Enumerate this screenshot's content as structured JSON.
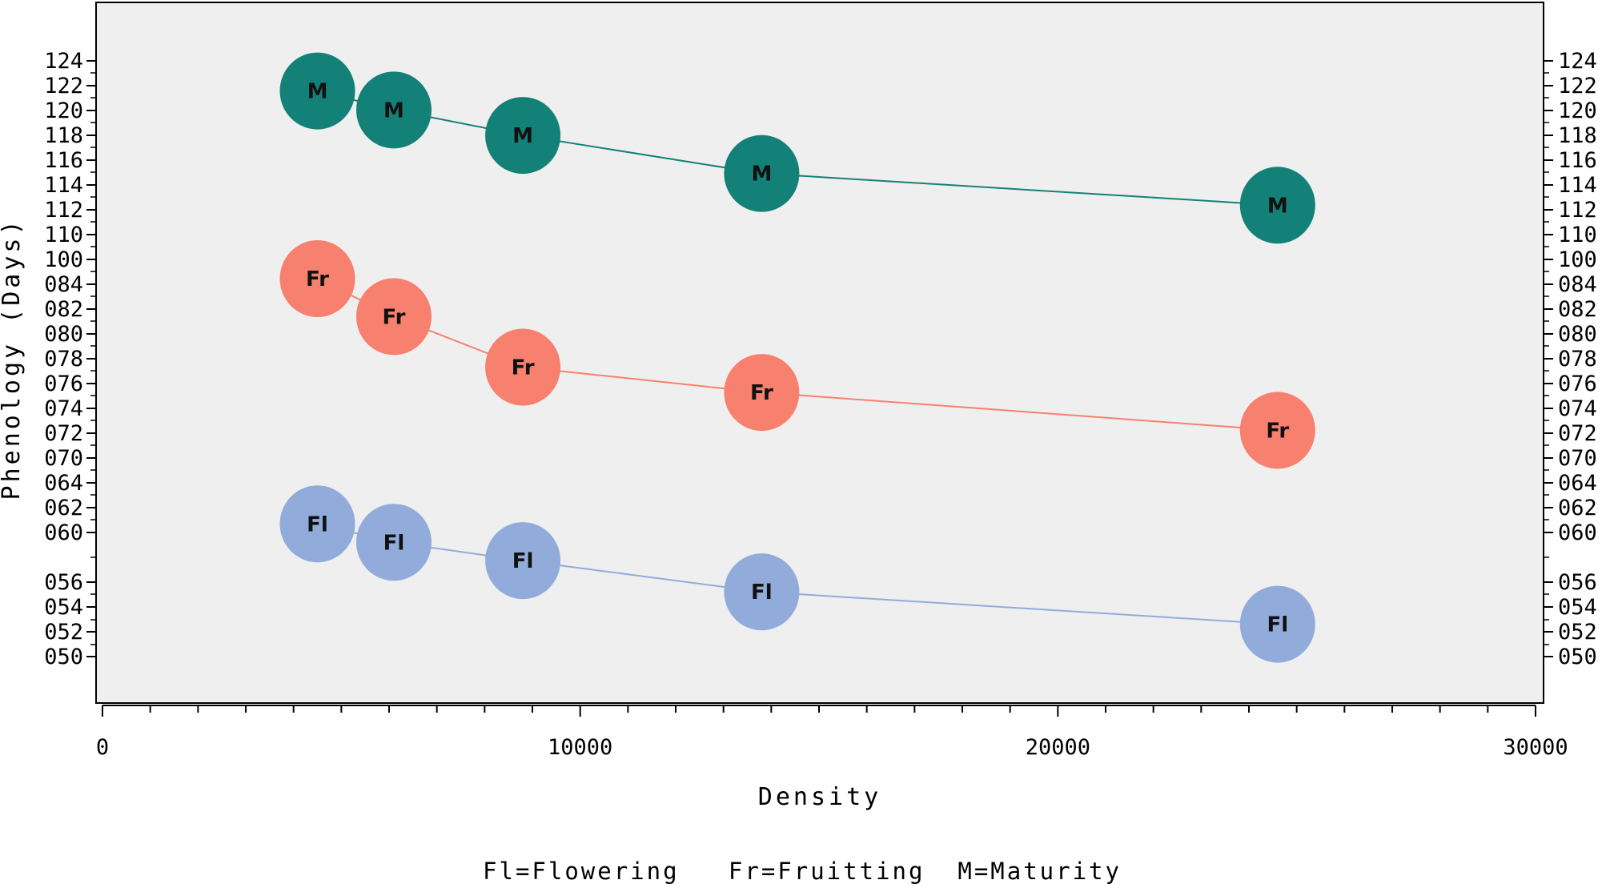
{
  "chart_data": {
    "type": "line",
    "title": "",
    "xlabel": "Density",
    "ylabel": "Phenology (Days)",
    "xlim": [
      0,
      30000
    ],
    "x_ticks": [
      0,
      10000,
      20000,
      30000
    ],
    "x_tick_labels": [
      "0",
      "10000",
      "20000",
      "30000"
    ],
    "y_axis_note": "discontinuous axis: tick labels are categorical stacked labels",
    "y_tick_labels": [
      "050",
      "052",
      "054",
      "056",
      "060",
      "062",
      "064",
      "070",
      "072",
      "074",
      "076",
      "078",
      "080",
      "082",
      "084",
      "100",
      "110",
      "112",
      "114",
      "116",
      "118",
      "120",
      "122",
      "124"
    ],
    "legend_text": "Fl=Flowering   Fr=Fruitting  M=Maturity",
    "series": [
      {
        "name": "Maturity",
        "marker": "M",
        "color": "#138177",
        "x": [
          4500,
          6100,
          8800,
          13800,
          24600
        ],
        "y": [
          121,
          119.5,
          117.5,
          114.5,
          112
        ]
      },
      {
        "name": "Fruitting",
        "marker": "Fr",
        "color": "#F7806F",
        "x": [
          4500,
          6100,
          8800,
          13800,
          24600
        ],
        "y": [
          84,
          81,
          77,
          75,
          72
        ]
      },
      {
        "name": "Flowering",
        "marker": "Fl",
        "color": "#91ACDA",
        "x": [
          4500,
          6100,
          8800,
          13800,
          24600
        ],
        "y": [
          60.5,
          59,
          57.5,
          55,
          52.5
        ]
      }
    ],
    "grid": false,
    "legend_position": "bottom-center"
  }
}
